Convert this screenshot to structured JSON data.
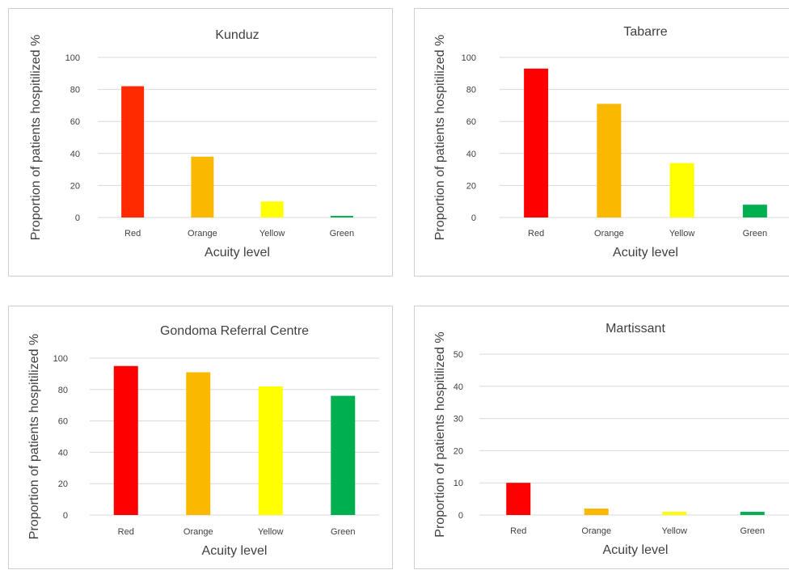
{
  "chart_data": [
    {
      "type": "bar",
      "title": "Kunduz",
      "xlabel": "Acuity level",
      "ylabel": "Proportion of patients hospitilized %",
      "categories": [
        "Red",
        "Orange",
        "Yellow",
        "Green"
      ],
      "values": [
        82,
        38,
        10,
        1
      ],
      "bar_colors": [
        "#ff2a00",
        "#fbb800",
        "#ffff00",
        "#00b050"
      ],
      "ylim": [
        0,
        100
      ],
      "yticks": [
        0,
        20,
        40,
        60,
        80,
        100
      ],
      "grid": true,
      "legend": "none"
    },
    {
      "type": "bar",
      "title": "Tabarre",
      "xlabel": "Acuity level",
      "ylabel": "Proportion of patients hospitilized %",
      "categories": [
        "Red",
        "Orange",
        "Yellow",
        "Green"
      ],
      "values": [
        93,
        71,
        34,
        8
      ],
      "bar_colors": [
        "#ff0000",
        "#fbb800",
        "#ffff00",
        "#00b050"
      ],
      "ylim": [
        0,
        100
      ],
      "yticks": [
        0,
        20,
        40,
        60,
        80,
        100
      ],
      "grid": true,
      "legend": "none"
    },
    {
      "type": "bar",
      "title": "Gondoma Referral Centre",
      "xlabel": "Acuity level",
      "ylabel": "Proportion of patients hospitilized %",
      "categories": [
        "Red",
        "Orange",
        "Yellow",
        "Green"
      ],
      "values": [
        95,
        91,
        82,
        76
      ],
      "bar_colors": [
        "#ff0000",
        "#fbb800",
        "#ffff00",
        "#00b050"
      ],
      "ylim": [
        0,
        100
      ],
      "yticks": [
        0,
        20,
        40,
        60,
        80,
        100
      ],
      "grid": true,
      "legend": "none"
    },
    {
      "type": "bar",
      "title": "Martissant",
      "xlabel": "Acuity level",
      "ylabel": "Proportion of patients hospitilized %",
      "categories": [
        "Red",
        "Orange",
        "Yellow",
        "Green"
      ],
      "values": [
        10,
        2,
        1,
        1
      ],
      "bar_colors": [
        "#ff0000",
        "#fbb800",
        "#ffff00",
        "#00b050"
      ],
      "ylim": [
        0,
        50
      ],
      "yticks": [
        0,
        10,
        20,
        30,
        40,
        50
      ],
      "grid": true,
      "legend": "none"
    }
  ]
}
